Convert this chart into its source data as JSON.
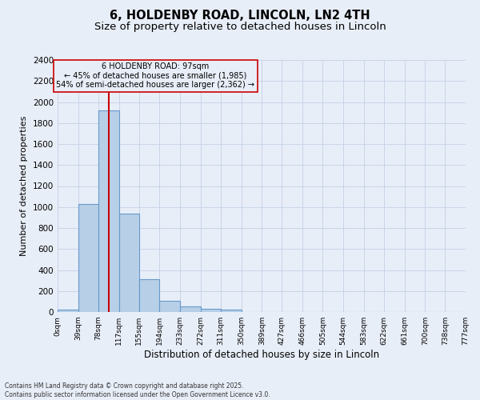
{
  "title": "6, HOLDENBY ROAD, LINCOLN, LN2 4TH",
  "subtitle": "Size of property relative to detached houses in Lincoln",
  "xlabel": "Distribution of detached houses by size in Lincoln",
  "ylabel": "Number of detached properties",
  "bin_edges": [
    0,
    39,
    78,
    117,
    155,
    194,
    233,
    272,
    311,
    350,
    389,
    427,
    466,
    505,
    544,
    583,
    622,
    661,
    700,
    738,
    777
  ],
  "bin_labels": [
    "0sqm",
    "39sqm",
    "78sqm",
    "117sqm",
    "155sqm",
    "194sqm",
    "233sqm",
    "272sqm",
    "311sqm",
    "350sqm",
    "389sqm",
    "427sqm",
    "466sqm",
    "505sqm",
    "544sqm",
    "583sqm",
    "622sqm",
    "661sqm",
    "700sqm",
    "738sqm",
    "777sqm"
  ],
  "counts": [
    20,
    1025,
    1920,
    935,
    315,
    105,
    50,
    30,
    20,
    0,
    0,
    0,
    0,
    0,
    0,
    0,
    0,
    0,
    0,
    0
  ],
  "bar_color": "#b8cfe8",
  "bar_edgecolor": "#6699cc",
  "bar_linewidth": 0.8,
  "property_size": 97,
  "property_label": "6 HOLDENBY ROAD: 97sqm",
  "smaller_pct": 45,
  "smaller_count": 1985,
  "larger_pct": 54,
  "larger_count": 2362,
  "vline_color": "#cc0000",
  "annotation_box_edgecolor": "#cc0000",
  "annotation_fontsize": 7,
  "ylim": [
    0,
    2400
  ],
  "yticks": [
    0,
    200,
    400,
    600,
    800,
    1000,
    1200,
    1400,
    1600,
    1800,
    2000,
    2200,
    2400
  ],
  "grid_color": "#c8d4e8",
  "background_color": "#e8eef8",
  "footer_line1": "Contains HM Land Registry data © Crown copyright and database right 2025.",
  "footer_line2": "Contains public sector information licensed under the Open Government Licence v3.0.",
  "title_fontsize": 10.5,
  "subtitle_fontsize": 9.5,
  "xlabel_fontsize": 8.5,
  "ylabel_fontsize": 8
}
